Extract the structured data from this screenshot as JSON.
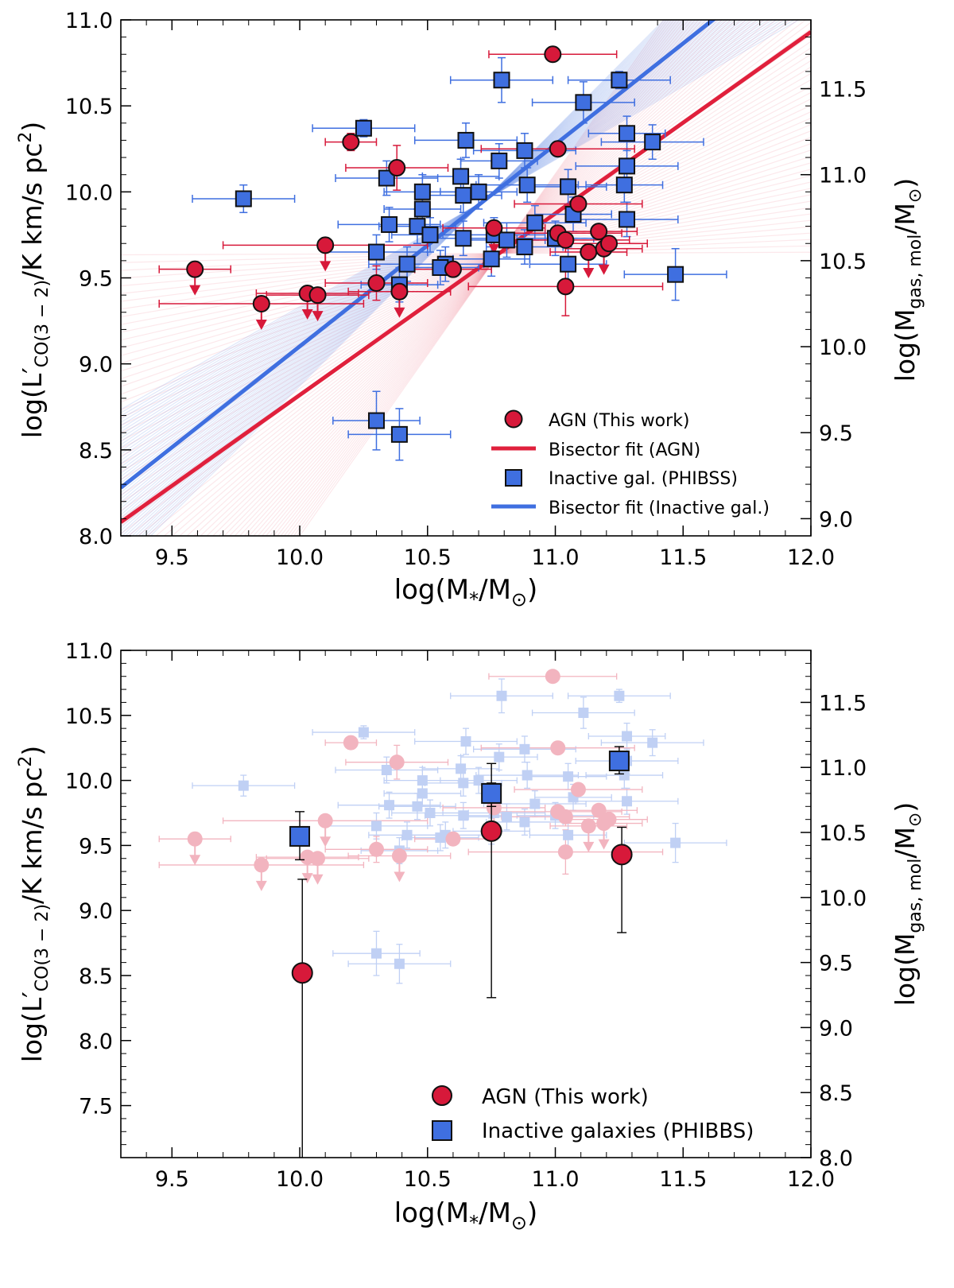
{
  "colors": {
    "agn": "#d7193a",
    "agn_edge": "#111111",
    "inactive": "#3f6fe0",
    "agn_fit": "#e0203c",
    "inactive_fit": "#3f6fe0"
  },
  "chart_data": [
    {
      "type": "scatter",
      "xlabel": "log(M",
      "xlabel_sub": "*",
      "xlabel_tail": "/M",
      "xlabel_sun": "⊙",
      "xlabel_close": ")",
      "ylabel": "log(L′",
      "ylabel_sub": "CO(3 − 2)",
      "ylabel_tail": "/K km/s pc",
      "ylabel_sup": "2",
      "ylabel_close": ")",
      "y2label": "log(M",
      "y2label_sub": "gas, mol",
      "y2label_tail": "/M",
      "y2label_sun": "⊙",
      "y2label_close": ")",
      "xlim": [
        9.3,
        12.0
      ],
      "ylim": [
        8.0,
        11.0
      ],
      "y2lim": [
        8.9,
        11.9
      ],
      "xticks": [
        "9.5",
        "10.0",
        "10.5",
        "11.0",
        "11.5",
        "12.0"
      ],
      "yticks": [
        "8.0",
        "8.5",
        "9.0",
        "9.5",
        "10.0",
        "10.5",
        "11.0"
      ],
      "y2ticks": [
        "9.0",
        "9.5",
        "10.0",
        "10.5",
        "11.0",
        "11.5"
      ],
      "legend_position": "lower-right",
      "legend": [
        "AGN (This work)",
        "Bisector fit (AGN)",
        "Inactive gal. (PHIBSS)",
        "Bisector fit (Inactive gal.)"
      ],
      "fits": {
        "agn": {
          "name": "Bisector fit (AGN)",
          "x": [
            9.3,
            12.0
          ],
          "y": [
            8.08,
            10.93
          ]
        },
        "inactive": {
          "name": "Bisector fit (Inactive gal.)",
          "x": [
            9.3,
            12.0
          ],
          "y": [
            8.28,
            11.45
          ]
        }
      },
      "series": [
        {
          "name": "AGN (This work)",
          "marker": "circle",
          "points": [
            {
              "x": 10.99,
              "y": 10.8,
              "xe": 0.25,
              "ye": 0
            },
            {
              "x": 10.2,
              "y": 10.29,
              "xe": 0.1,
              "ye": 0.05
            },
            {
              "x": 10.38,
              "y": 10.14,
              "xe": 0.2,
              "ye": 0.13
            },
            {
              "x": 11.01,
              "y": 10.25,
              "xe": 0.3,
              "ye": 0
            },
            {
              "x": 10.1,
              "y": 9.69,
              "xe": 0.4,
              "ye": 0,
              "upper": true
            },
            {
              "x": 9.59,
              "y": 9.55,
              "xe": 0.14,
              "ye": 0,
              "upper": true
            },
            {
              "x": 9.85,
              "y": 9.35,
              "xe": 0.4,
              "ye": 0,
              "upper": true
            },
            {
              "x": 10.03,
              "y": 9.41,
              "xe": 0.2,
              "ye": 0,
              "upper": true
            },
            {
              "x": 10.07,
              "y": 9.4,
              "xe": 0.2,
              "ye": 0,
              "upper": true
            },
            {
              "x": 10.3,
              "y": 9.47,
              "xe": 0.2,
              "ye": 0.1
            },
            {
              "x": 10.39,
              "y": 9.42,
              "xe": 0.2,
              "ye": 0,
              "upper": true
            },
            {
              "x": 10.6,
              "y": 9.55,
              "xe": 0.15,
              "ye": 0
            },
            {
              "x": 10.76,
              "y": 9.79,
              "xe": 0.2,
              "ye": 0,
              "upper": true
            },
            {
              "x": 11.01,
              "y": 9.76,
              "xe": 0.25,
              "ye": 0
            },
            {
              "x": 11.04,
              "y": 9.72,
              "xe": 0.25,
              "ye": 0
            },
            {
              "x": 11.04,
              "y": 9.45,
              "xe": 0.38,
              "ye": 0.17
            },
            {
              "x": 11.09,
              "y": 9.93,
              "xe": 0.25,
              "ye": 0
            },
            {
              "x": 11.13,
              "y": 9.65,
              "xe": 0.15,
              "ye": 0,
              "upper": true
            },
            {
              "x": 11.17,
              "y": 9.77,
              "xe": 0.15,
              "ye": 0
            },
            {
              "x": 11.19,
              "y": 9.67,
              "xe": 0.15,
              "ye": 0,
              "upper": true
            },
            {
              "x": 11.21,
              "y": 9.7,
              "xe": 0.15,
              "ye": 0
            }
          ]
        },
        {
          "name": "Inactive gal. (PHIBSS)",
          "marker": "square",
          "points": [
            {
              "x": 10.79,
              "y": 10.65,
              "xe": 0.2,
              "ye": 0.13
            },
            {
              "x": 11.25,
              "y": 10.65,
              "xe": 0.2,
              "ye": 0.05
            },
            {
              "x": 11.11,
              "y": 10.52,
              "xe": 0.2,
              "ye": 0.12
            },
            {
              "x": 10.25,
              "y": 10.37,
              "xe": 0.2,
              "ye": 0.05
            },
            {
              "x": 10.65,
              "y": 10.3,
              "xe": 0.2,
              "ye": 0.1
            },
            {
              "x": 11.38,
              "y": 10.29,
              "xe": 0.2,
              "ye": 0.1
            },
            {
              "x": 11.28,
              "y": 10.34,
              "xe": 0.15,
              "ye": 0.1
            },
            {
              "x": 10.88,
              "y": 10.24,
              "xe": 0.2,
              "ye": 0.1
            },
            {
              "x": 10.78,
              "y": 10.18,
              "xe": 0.15,
              "ye": 0.1
            },
            {
              "x": 11.28,
              "y": 10.15,
              "xe": 0.2,
              "ye": 0.1
            },
            {
              "x": 10.34,
              "y": 10.08,
              "xe": 0.2,
              "ye": 0.1
            },
            {
              "x": 10.63,
              "y": 10.09,
              "xe": 0.15,
              "ye": 0.1
            },
            {
              "x": 10.89,
              "y": 10.04,
              "xe": 0.2,
              "ye": 0.1
            },
            {
              "x": 11.05,
              "y": 10.03,
              "xe": 0.15,
              "ye": 0.1
            },
            {
              "x": 11.27,
              "y": 10.04,
              "xe": 0.15,
              "ye": 0.1
            },
            {
              "x": 10.48,
              "y": 10.0,
              "xe": 0.15,
              "ye": 0.1
            },
            {
              "x": 10.7,
              "y": 10.0,
              "xe": 0.15,
              "ye": 0.1
            },
            {
              "x": 10.64,
              "y": 9.98,
              "xe": 0.15,
              "ye": 0.1
            },
            {
              "x": 9.78,
              "y": 9.96,
              "xe": 0.2,
              "ye": 0.08
            },
            {
              "x": 10.48,
              "y": 9.9,
              "xe": 0.15,
              "ye": 0.1
            },
            {
              "x": 11.07,
              "y": 9.87,
              "xe": 0.15,
              "ye": 0.1
            },
            {
              "x": 10.35,
              "y": 9.81,
              "xe": 0.2,
              "ye": 0.1
            },
            {
              "x": 10.92,
              "y": 9.82,
              "xe": 0.2,
              "ye": 0.1
            },
            {
              "x": 11.28,
              "y": 9.84,
              "xe": 0.2,
              "ye": 0.1
            },
            {
              "x": 10.46,
              "y": 9.8,
              "xe": 0.15,
              "ye": 0.1
            },
            {
              "x": 10.76,
              "y": 9.75,
              "xe": 0.2,
              "ye": 0.1
            },
            {
              "x": 10.51,
              "y": 9.75,
              "xe": 0.15,
              "ye": 0.1
            },
            {
              "x": 10.64,
              "y": 9.73,
              "xe": 0.15,
              "ye": 0.1
            },
            {
              "x": 10.81,
              "y": 9.72,
              "xe": 0.15,
              "ye": 0.1
            },
            {
              "x": 11.0,
              "y": 9.73,
              "xe": 0.15,
              "ye": 0.1
            },
            {
              "x": 10.88,
              "y": 9.68,
              "xe": 0.15,
              "ye": 0.1
            },
            {
              "x": 10.3,
              "y": 9.65,
              "xe": 0.2,
              "ye": 0.1
            },
            {
              "x": 10.75,
              "y": 9.61,
              "xe": 0.15,
              "ye": 0.1
            },
            {
              "x": 10.42,
              "y": 9.58,
              "xe": 0.15,
              "ye": 0.1
            },
            {
              "x": 11.05,
              "y": 9.58,
              "xe": 0.15,
              "ye": 0.1
            },
            {
              "x": 10.57,
              "y": 9.58,
              "xe": 0.15,
              "ye": 0.1
            },
            {
              "x": 10.55,
              "y": 9.56,
              "xe": 0.15,
              "ye": 0.1
            },
            {
              "x": 10.39,
              "y": 9.46,
              "xe": 0.15,
              "ye": 0.1
            },
            {
              "x": 11.47,
              "y": 9.52,
              "xe": 0.2,
              "ye": 0.15
            },
            {
              "x": 10.3,
              "y": 8.67,
              "xe": 0.17,
              "ye": 0.17
            },
            {
              "x": 10.39,
              "y": 8.59,
              "xe": 0.2,
              "ye": 0.15
            }
          ]
        }
      ]
    },
    {
      "type": "scatter",
      "xlabel": "log(M",
      "xlabel_sub": "*",
      "xlabel_tail": "/M",
      "xlabel_sun": "⊙",
      "xlabel_close": ")",
      "ylabel": "log(L′",
      "ylabel_sub": "CO(3 − 2)",
      "ylabel_tail": "/K km/s pc",
      "ylabel_sup": "2",
      "ylabel_close": ")",
      "y2label": "log(M",
      "y2label_sub": "gas, mol",
      "y2label_tail": "/M",
      "y2label_sun": "⊙",
      "y2label_close": ")",
      "xlim": [
        9.3,
        12.0
      ],
      "ylim": [
        7.1,
        11.0
      ],
      "y2lim": [
        8.0,
        11.9
      ],
      "xticks": [
        "9.5",
        "10.0",
        "10.5",
        "11.0",
        "11.5",
        "12.0"
      ],
      "yticks": [
        "7.5",
        "8.0",
        "8.5",
        "9.0",
        "9.5",
        "10.0",
        "10.5",
        "11.0"
      ],
      "y2ticks": [
        "8.0",
        "8.5",
        "9.0",
        "9.5",
        "10.0",
        "10.5",
        "11.0",
        "11.5"
      ],
      "legend_position": "lower-right",
      "legend": [
        "AGN (This work)",
        "Inactive galaxies (PHIBBS)"
      ],
      "background": "faded copy of the individual points from the top panel",
      "series": [
        {
          "name": "AGN (This work)",
          "marker": "circle",
          "points": [
            {
              "x": 10.01,
              "y": 8.52,
              "ye_lo": 1.45,
              "ye_hi": 0.72
            },
            {
              "x": 10.75,
              "y": 9.61,
              "ye_lo": 1.28,
              "ye_hi": 0.52
            },
            {
              "x": 11.26,
              "y": 9.43,
              "ye_lo": 0.6,
              "ye_hi": 0.21
            }
          ]
        },
        {
          "name": "Inactive galaxies (PHIBBS)",
          "marker": "square",
          "points": [
            {
              "x": 10.0,
              "y": 9.57,
              "ye_lo": 0.18,
              "ye_hi": 0.19
            },
            {
              "x": 10.75,
              "y": 9.9,
              "ye_lo": 0.1,
              "ye_hi": 0.08
            },
            {
              "x": 11.25,
              "y": 10.15,
              "ye_lo": 0.1,
              "ye_hi": 0.11
            }
          ]
        }
      ]
    }
  ]
}
